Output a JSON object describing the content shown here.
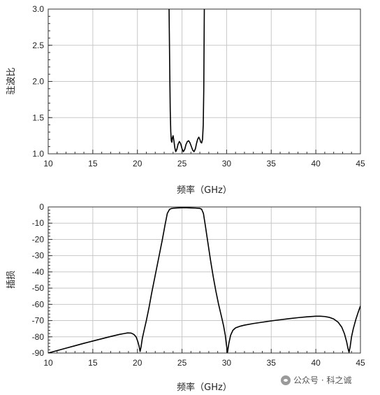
{
  "chart_data": [
    {
      "type": "line",
      "xlabel": "频率（GHz）",
      "ylabel": "驻波比",
      "xlim": [
        10,
        45
      ],
      "ylim": [
        1.0,
        3.0
      ],
      "xticks": [
        "10",
        "15",
        "20",
        "25",
        "30",
        "35",
        "40",
        "45"
      ],
      "yticks": [
        "1.0",
        "1.5",
        "2.0",
        "2.5",
        "3.0"
      ],
      "grid": true,
      "series": [
        {
          "x": [
            23.55,
            23.62,
            23.68,
            23.74,
            23.8,
            23.86,
            23.92,
            24.0,
            24.1,
            24.2,
            24.3,
            24.42,
            24.55,
            24.7,
            24.85,
            25.0,
            25.15,
            25.3,
            25.45,
            25.6,
            25.75,
            25.9,
            26.05,
            26.2,
            26.35,
            26.5,
            26.62,
            26.75,
            26.88,
            27.0,
            27.1,
            27.2,
            27.3,
            27.38,
            27.44,
            27.5
          ],
          "y": [
            3.0,
            2.2,
            1.6,
            1.3,
            1.18,
            1.16,
            1.22,
            1.25,
            1.17,
            1.08,
            1.03,
            1.06,
            1.13,
            1.17,
            1.14,
            1.07,
            1.03,
            1.06,
            1.13,
            1.17,
            1.18,
            1.15,
            1.1,
            1.05,
            1.03,
            1.07,
            1.14,
            1.2,
            1.23,
            1.2,
            1.16,
            1.15,
            1.2,
            1.4,
            1.9,
            3.0
          ]
        }
      ]
    },
    {
      "type": "line",
      "xlabel": "频率（GHz）",
      "ylabel": "插损",
      "xlim": [
        10,
        45
      ],
      "ylim": [
        -90,
        0
      ],
      "xticks": [
        "10",
        "15",
        "20",
        "25",
        "30",
        "35",
        "40",
        "45"
      ],
      "yticks": [
        "0",
        "-10",
        "-20",
        "-30",
        "-40",
        "-50",
        "-60",
        "-70",
        "-80",
        "-90"
      ],
      "grid": true,
      "series": [
        {
          "x": [
            10.0,
            11.0,
            12.0,
            13.0,
            14.0,
            15.0,
            16.0,
            17.0,
            18.0,
            18.5,
            18.9,
            19.3,
            19.6,
            19.85,
            20.05,
            20.2,
            20.3,
            20.4,
            20.55,
            20.75,
            21.0,
            21.3,
            21.6,
            22.0,
            22.4,
            22.8,
            23.1,
            23.35,
            23.6,
            23.8,
            24.0,
            24.5,
            25.0,
            25.5,
            26.0,
            26.5,
            27.0,
            27.2,
            27.4,
            27.6,
            27.9,
            28.2,
            28.5,
            28.8,
            29.1,
            29.4,
            29.65,
            29.85,
            29.98,
            30.1,
            30.25,
            30.45,
            30.7,
            31.0,
            31.5,
            32.0,
            33.0,
            34.0,
            35.0,
            36.0,
            37.0,
            38.0,
            39.0,
            40.0,
            40.5,
            41.0,
            41.5,
            42.0,
            42.5,
            42.9,
            43.2,
            43.45,
            43.6,
            43.72,
            43.85,
            44.0,
            44.2,
            44.5,
            44.8,
            45.0
          ],
          "y": [
            -90.0,
            -88.5,
            -87.0,
            -85.5,
            -84.0,
            -82.6,
            -81.2,
            -79.8,
            -78.5,
            -78.0,
            -77.6,
            -77.7,
            -78.5,
            -80.0,
            -83.0,
            -86.0,
            -89.0,
            -86.5,
            -81.0,
            -76.0,
            -70.0,
            -62.0,
            -53.0,
            -42.0,
            -31.0,
            -20.0,
            -11.0,
            -4.0,
            -1.5,
            -1.0,
            -0.8,
            -0.6,
            -0.5,
            -0.5,
            -0.6,
            -0.7,
            -0.9,
            -1.4,
            -4.0,
            -11.0,
            -22.0,
            -33.0,
            -43.0,
            -52.0,
            -60.0,
            -67.0,
            -73.0,
            -79.0,
            -85.0,
            -89.5,
            -84.0,
            -79.0,
            -76.0,
            -74.5,
            -73.5,
            -72.8,
            -71.8,
            -71.0,
            -70.2,
            -69.5,
            -68.8,
            -68.2,
            -67.7,
            -67.3,
            -67.3,
            -67.5,
            -68.0,
            -69.0,
            -71.0,
            -74.0,
            -78.0,
            -83.0,
            -87.0,
            -89.5,
            -86.0,
            -80.0,
            -75.0,
            -69.0,
            -64.0,
            -61.0
          ]
        }
      ]
    }
  ],
  "watermark": {
    "text": "公众号 · 科之诚",
    "icon": "wechat-icon"
  }
}
